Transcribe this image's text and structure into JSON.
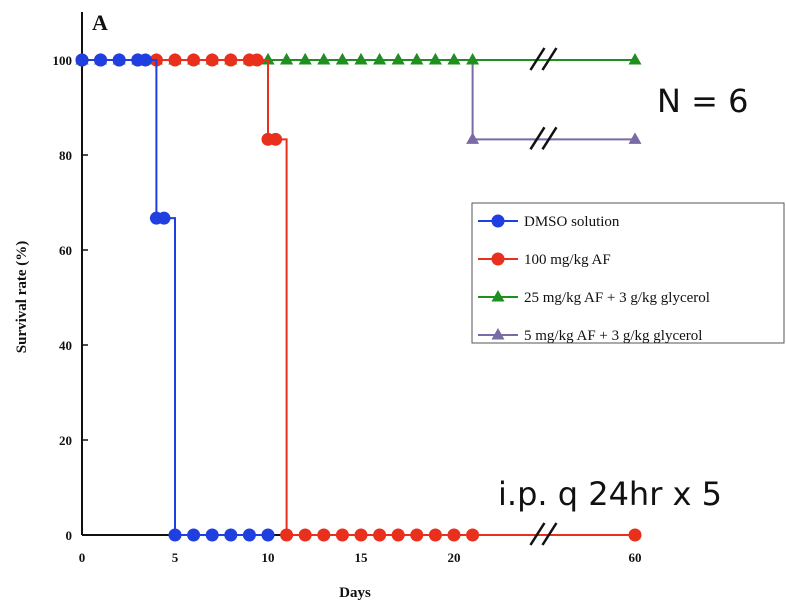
{
  "chart_data": {
    "type": "line",
    "panel_label": "A",
    "xlabel": "Days",
    "ylabel": "Survival rate (%)",
    "xlim": [
      0,
      60
    ],
    "ylim": [
      0,
      100
    ],
    "x_axis_break": [
      21,
      60
    ],
    "x_ticks": [
      0,
      5,
      10,
      15,
      20,
      60
    ],
    "y_ticks": [
      0,
      20,
      40,
      60,
      80,
      100
    ],
    "legend_position": "right",
    "grid": false,
    "annotations": {
      "n": "N = 6",
      "dosing": "i.p. q 24hr x 5"
    },
    "series": [
      {
        "name": "DMSO solution",
        "color": "#1f3fe0",
        "marker": "circle",
        "x": [
          0,
          1,
          2,
          3,
          4,
          5,
          6,
          7,
          8,
          9,
          10
        ],
        "y": [
          100,
          100,
          100,
          100,
          66.7,
          0,
          0,
          0,
          0,
          0,
          0
        ]
      },
      {
        "name": "100 mg/kg AF",
        "color": "#e8301c",
        "marker": "circle",
        "x": [
          0,
          1,
          2,
          3,
          4,
          5,
          6,
          7,
          8,
          9,
          10,
          11,
          12,
          13,
          14,
          15,
          16,
          17,
          18,
          19,
          20,
          21,
          60
        ],
        "y": [
          100,
          100,
          100,
          100,
          100,
          100,
          100,
          100,
          100,
          100,
          83.3,
          0,
          0,
          0,
          0,
          0,
          0,
          0,
          0,
          0,
          0,
          0,
          0
        ]
      },
      {
        "name": "25 mg/kg AF + 3 g/kg glycerol",
        "color": "#1f8f1f",
        "marker": "triangle",
        "x": [
          0,
          1,
          2,
          3,
          4,
          5,
          6,
          7,
          8,
          9,
          10,
          11,
          12,
          13,
          14,
          15,
          16,
          17,
          18,
          19,
          20,
          21,
          60
        ],
        "y": [
          100,
          100,
          100,
          100,
          100,
          100,
          100,
          100,
          100,
          100,
          100,
          100,
          100,
          100,
          100,
          100,
          100,
          100,
          100,
          100,
          100,
          100,
          100
        ]
      },
      {
        "name": "5 mg/kg AF + 3 g/kg glycerol",
        "color": "#7a6aa6",
        "marker": "triangle",
        "x": [
          0,
          1,
          2,
          3,
          4,
          5,
          6,
          7,
          8,
          9,
          10,
          11,
          12,
          13,
          14,
          15,
          16,
          17,
          18,
          19,
          20,
          21,
          60
        ],
        "y": [
          100,
          100,
          100,
          100,
          100,
          100,
          100,
          100,
          100,
          100,
          100,
          100,
          100,
          100,
          100,
          100,
          100,
          100,
          100,
          100,
          100,
          83.3,
          83.3
        ]
      }
    ]
  }
}
